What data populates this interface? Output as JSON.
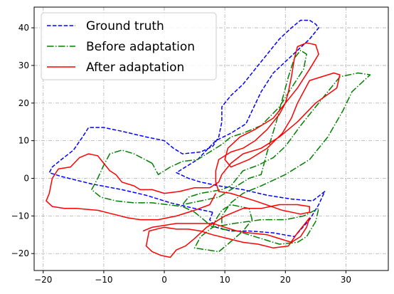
{
  "chart_data": {
    "type": "line",
    "title": "",
    "xlabel": "",
    "ylabel": "",
    "xlim": [
      -21.5,
      37
    ],
    "ylim": [
      -24.5,
      45.5
    ],
    "xticks": [
      -20,
      -10,
      0,
      10,
      20,
      30
    ],
    "yticks": [
      -20,
      -10,
      0,
      10,
      20,
      30,
      40
    ],
    "grid": true,
    "legend": "upper-left",
    "series": [
      {
        "name": "Ground truth",
        "style": "dashed",
        "color": "#0000ff",
        "points": [
          [
            8,
            -9
          ],
          [
            5,
            -8
          ],
          [
            1,
            -6.5
          ],
          [
            -3,
            -4.5
          ],
          [
            -7,
            -3
          ],
          [
            -12,
            -1.5
          ],
          [
            -17,
            0.5
          ],
          [
            -19,
            1.5
          ],
          [
            -18.5,
            3
          ],
          [
            -17,
            5
          ],
          [
            -15,
            7.5
          ],
          [
            -13.5,
            11
          ],
          [
            -12.5,
            13.5
          ],
          [
            -10,
            13.5
          ],
          [
            -7,
            12.5
          ],
          [
            -3,
            11
          ],
          [
            0,
            10
          ],
          [
            1.5,
            8
          ],
          [
            3,
            6.5
          ],
          [
            6,
            7
          ],
          [
            8,
            8.5
          ],
          [
            9,
            11
          ],
          [
            9.5,
            15
          ],
          [
            9.5,
            19
          ],
          [
            11,
            22
          ],
          [
            13,
            25
          ],
          [
            15,
            29
          ],
          [
            17,
            33
          ],
          [
            19,
            37
          ],
          [
            21,
            40
          ],
          [
            22.5,
            42
          ],
          [
            24,
            42
          ],
          [
            25,
            41
          ],
          [
            25.5,
            40
          ],
          [
            24,
            37
          ],
          [
            22,
            34
          ],
          [
            20,
            31
          ],
          [
            18,
            28
          ],
          [
            16,
            23
          ],
          [
            14.5,
            18
          ],
          [
            13.5,
            14.5
          ],
          [
            11,
            12
          ],
          [
            8.5,
            10
          ],
          [
            7,
            7.5
          ],
          [
            5.5,
            5
          ],
          [
            3.5,
            3
          ],
          [
            2,
            1.5
          ],
          [
            4,
            0
          ],
          [
            6,
            -1
          ],
          [
            9,
            -2
          ],
          [
            13,
            -3
          ],
          [
            17,
            -4.5
          ],
          [
            21,
            -5.5
          ],
          [
            24.5,
            -6
          ],
          [
            26.5,
            -3.5
          ],
          [
            25.5,
            -7
          ],
          [
            24,
            -11
          ],
          [
            21.5,
            -15.5
          ],
          [
            18,
            -14.5
          ],
          [
            14,
            -14
          ],
          [
            11,
            -14
          ],
          [
            8.5,
            -13
          ],
          [
            7.5,
            -11
          ],
          [
            8,
            -9
          ]
        ]
      },
      {
        "name": "Before adaptation",
        "style": "dashdot",
        "color": "#008000",
        "points": [
          [
            -2,
            4
          ],
          [
            -5,
            6.5
          ],
          [
            -7,
            7.5
          ],
          [
            -9,
            6.5
          ],
          [
            -10,
            3.5
          ],
          [
            -11,
            0
          ],
          [
            -12,
            -3
          ],
          [
            -10.5,
            -5
          ],
          [
            -8,
            -6
          ],
          [
            -5,
            -6.5
          ],
          [
            -2,
            -6.5
          ],
          [
            0.5,
            -7
          ],
          [
            3,
            -7.5
          ],
          [
            5,
            -9
          ],
          [
            6.5,
            -11
          ],
          [
            8,
            -13
          ],
          [
            8.5,
            -11
          ],
          [
            9.5,
            -8.5
          ],
          [
            11,
            -7
          ],
          [
            14,
            -8
          ],
          [
            14.5,
            -11
          ],
          [
            13,
            -14
          ],
          [
            10.5,
            -17.5
          ],
          [
            9,
            -19.5
          ],
          [
            7,
            -19
          ],
          [
            5,
            -18.5
          ],
          [
            6,
            -15.5
          ],
          [
            8,
            -13
          ],
          [
            11.5,
            -12
          ],
          [
            16,
            -11
          ],
          [
            20,
            -11
          ],
          [
            23,
            -10
          ],
          [
            25.5,
            -8
          ],
          [
            25,
            -11.5
          ],
          [
            23.5,
            -15.5
          ],
          [
            22,
            -17
          ],
          [
            19,
            -17.5
          ],
          [
            16,
            -16
          ],
          [
            14,
            -15
          ],
          [
            12,
            -14
          ],
          [
            9.5,
            -13.5
          ],
          [
            9.5,
            -10
          ],
          [
            11,
            -6.5
          ],
          [
            13,
            -4
          ],
          [
            16,
            -2
          ],
          [
            20,
            1
          ],
          [
            24,
            5
          ],
          [
            27,
            11
          ],
          [
            29.5,
            18
          ],
          [
            31,
            23
          ],
          [
            33,
            26
          ],
          [
            34,
            27.5
          ],
          [
            32,
            28
          ],
          [
            29,
            27
          ],
          [
            27,
            23
          ],
          [
            25,
            19
          ],
          [
            22.5,
            14
          ],
          [
            20,
            8.5
          ],
          [
            18,
            5.5
          ],
          [
            15.5,
            3.5
          ],
          [
            13,
            2
          ],
          [
            12,
            0
          ],
          [
            11,
            -2
          ],
          [
            9.5,
            -3
          ],
          [
            6,
            -4
          ],
          [
            4,
            -5
          ],
          [
            3,
            -7
          ],
          [
            6,
            -6
          ],
          [
            9,
            -5
          ],
          [
            12,
            -2
          ],
          [
            14,
            0
          ],
          [
            16,
            1
          ],
          [
            17,
            7
          ],
          [
            18.5,
            15
          ],
          [
            19.5,
            21
          ],
          [
            20.5,
            27
          ],
          [
            21.5,
            32
          ],
          [
            22.5,
            34
          ],
          [
            23.5,
            33
          ],
          [
            23,
            29
          ],
          [
            21,
            24
          ],
          [
            19,
            19
          ],
          [
            16,
            14
          ],
          [
            13,
            12
          ],
          [
            11,
            11
          ],
          [
            9.5,
            9
          ],
          [
            7.5,
            7
          ],
          [
            5.5,
            5
          ],
          [
            3,
            4.5
          ],
          [
            1,
            3
          ],
          [
            -1,
            1
          ],
          [
            -2,
            4
          ]
        ]
      },
      {
        "name": "After adaptation",
        "style": "solid",
        "color": "#ff0000",
        "points": [
          [
            -3.5,
            -14
          ],
          [
            -2,
            -13
          ],
          [
            2,
            -12
          ],
          [
            5,
            -12
          ],
          [
            8,
            -12
          ],
          [
            10,
            -13
          ],
          [
            12,
            -14
          ],
          [
            14,
            -14.5
          ],
          [
            17,
            -15
          ],
          [
            19,
            -16
          ],
          [
            21,
            -17
          ],
          [
            22.5,
            -15.5
          ],
          [
            23.5,
            -13
          ],
          [
            24,
            -10.5
          ],
          [
            23,
            -12.5
          ],
          [
            22,
            -14.5
          ],
          [
            20.5,
            -18
          ],
          [
            18,
            -18.5
          ],
          [
            15.5,
            -17.5
          ],
          [
            13,
            -17
          ],
          [
            10.5,
            -16
          ],
          [
            8,
            -15
          ],
          [
            6,
            -14
          ],
          [
            4,
            -13.5
          ],
          [
            2,
            -13.5
          ],
          [
            0,
            -13
          ],
          [
            -2.5,
            -14
          ],
          [
            -3,
            -18
          ],
          [
            -2,
            -19.5
          ],
          [
            -0.5,
            -20.5
          ],
          [
            1,
            -21
          ],
          [
            2,
            -19
          ],
          [
            3.5,
            -18
          ],
          [
            5,
            -16
          ],
          [
            7,
            -13
          ],
          [
            8.5,
            -11.5
          ],
          [
            10,
            -10
          ],
          [
            13,
            -8
          ],
          [
            16,
            -8
          ],
          [
            19,
            -7
          ],
          [
            22,
            -7
          ],
          [
            24,
            -7.5
          ],
          [
            24,
            -9
          ],
          [
            22.5,
            -9.5
          ],
          [
            19.5,
            -8.5
          ],
          [
            15,
            -6
          ],
          [
            11,
            -4
          ],
          [
            9,
            -3.5
          ],
          [
            8.5,
            -1
          ],
          [
            8.5,
            2
          ],
          [
            9,
            5
          ],
          [
            11,
            7
          ],
          [
            13,
            8
          ],
          [
            15,
            10
          ],
          [
            17,
            13
          ],
          [
            19,
            17
          ],
          [
            20,
            20
          ],
          [
            20.5,
            23
          ],
          [
            21,
            27
          ],
          [
            21.5,
            32
          ],
          [
            22,
            35
          ],
          [
            23.5,
            36
          ],
          [
            25,
            35.5
          ],
          [
            25.5,
            33
          ],
          [
            24,
            29
          ],
          [
            22,
            24
          ],
          [
            20,
            20
          ],
          [
            18,
            16
          ],
          [
            15,
            13
          ],
          [
            12.5,
            11
          ],
          [
            10.5,
            8
          ],
          [
            10,
            5
          ],
          [
            11,
            3
          ],
          [
            14,
            5
          ],
          [
            17,
            8
          ],
          [
            19.5,
            12
          ],
          [
            21,
            16
          ],
          [
            22,
            20
          ],
          [
            24,
            26
          ],
          [
            28,
            28
          ],
          [
            29,
            27.5
          ],
          [
            28.5,
            24
          ],
          [
            25,
            20
          ],
          [
            22,
            15
          ],
          [
            19,
            11
          ],
          [
            16,
            8
          ],
          [
            13,
            6.5
          ],
          [
            11,
            4
          ],
          [
            9.5,
            1
          ],
          [
            9,
            -1
          ],
          [
            7.5,
            -2.5
          ],
          [
            5,
            -2.5
          ],
          [
            2.5,
            -3.5
          ],
          [
            0,
            -4
          ],
          [
            -2,
            -3
          ],
          [
            -4,
            -3
          ],
          [
            -5,
            -2
          ],
          [
            -7,
            -1
          ],
          [
            -8,
            1
          ],
          [
            -9,
            2
          ],
          [
            -10,
            4
          ],
          [
            -11,
            6
          ],
          [
            -12.5,
            6.5
          ],
          [
            -14,
            5.5
          ],
          [
            -15.5,
            3
          ],
          [
            -17.5,
            2.5
          ],
          [
            -18.5,
            0
          ],
          [
            -19,
            -4
          ],
          [
            -19.5,
            -6
          ],
          [
            -18.5,
            -7.5
          ],
          [
            -16.5,
            -8
          ],
          [
            -14.5,
            -8
          ],
          [
            -11,
            -8.5
          ],
          [
            -8.5,
            -9.5
          ],
          [
            -6,
            -10.5
          ],
          [
            -4,
            -11
          ],
          [
            -1,
            -11
          ],
          [
            2,
            -10
          ],
          [
            5,
            -8.5
          ],
          [
            7.5,
            -7
          ],
          [
            8.5,
            -4
          ]
        ]
      }
    ]
  }
}
